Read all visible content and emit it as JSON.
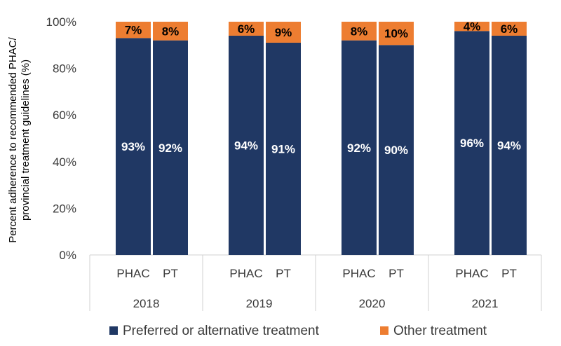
{
  "chart_data": {
    "type": "bar",
    "stacked": true,
    "ylim": [
      0,
      100
    ],
    "yticks": [
      0,
      20,
      40,
      60,
      80,
      100
    ],
    "ytick_labels": [
      "0%",
      "20%",
      "40%",
      "60%",
      "80%",
      "100%"
    ],
    "ylabel": "Percent adherence to recommended PHAC/ provincial treatment guidelines (%)",
    "ylabel_lines": [
      "Percent adherence to recommended PHAC/",
      "provincial treatment guidelines (%)"
    ],
    "groups": [
      "2018",
      "2019",
      "2020",
      "2021"
    ],
    "categories": [
      "PHAC",
      "PT"
    ],
    "series": [
      {
        "name": "Preferred or alternative treatment",
        "color": "#203864",
        "label_color": "#ffffff",
        "values": [
          [
            93,
            92
          ],
          [
            94,
            91
          ],
          [
            92,
            90
          ],
          [
            96,
            94
          ]
        ],
        "labels": [
          [
            "93%",
            "92%"
          ],
          [
            "94%",
            "91%"
          ],
          [
            "92%",
            "90%"
          ],
          [
            "96%",
            "94%"
          ]
        ]
      },
      {
        "name": "Other treatment",
        "color": "#ed7d31",
        "label_color": "#000000",
        "values": [
          [
            7,
            8
          ],
          [
            6,
            9
          ],
          [
            8,
            10
          ],
          [
            4,
            6
          ]
        ],
        "labels": [
          [
            "7%",
            "8%"
          ],
          [
            "6%",
            "9%"
          ],
          [
            "8%",
            "10%"
          ],
          [
            "4%",
            "6%"
          ]
        ]
      }
    ],
    "legend_position": "bottom",
    "grid": false
  }
}
